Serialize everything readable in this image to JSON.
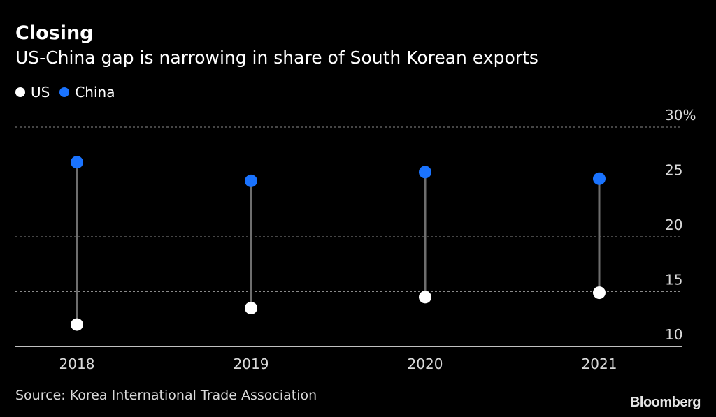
{
  "title": "Closing",
  "subtitle": "US-China gap is narrowing in share of South Korean exports",
  "legend": [
    {
      "label": "US",
      "color": "#ffffff"
    },
    {
      "label": "China",
      "color": "#1a73ff"
    }
  ],
  "source": "Source: Korea International Trade Association",
  "brand": "Bloomberg",
  "chart_data": {
    "type": "scatter",
    "categories": [
      "2018",
      "2019",
      "2020",
      "2021"
    ],
    "series": [
      {
        "name": "US",
        "color": "#ffffff",
        "values": [
          12.0,
          13.5,
          14.5,
          14.9
        ]
      },
      {
        "name": "China",
        "color": "#1a73ff",
        "values": [
          26.8,
          25.1,
          25.9,
          25.3
        ]
      }
    ],
    "ylim": [
      10,
      30
    ],
    "yticks": [
      {
        "value": 30,
        "label": "30%"
      },
      {
        "value": 25,
        "label": "25"
      },
      {
        "value": 20,
        "label": "20"
      },
      {
        "value": 15,
        "label": "15"
      },
      {
        "value": 10,
        "label": "10"
      }
    ],
    "grid": true,
    "legend_position": "top-left",
    "connector_color": "#6e6e6e"
  }
}
